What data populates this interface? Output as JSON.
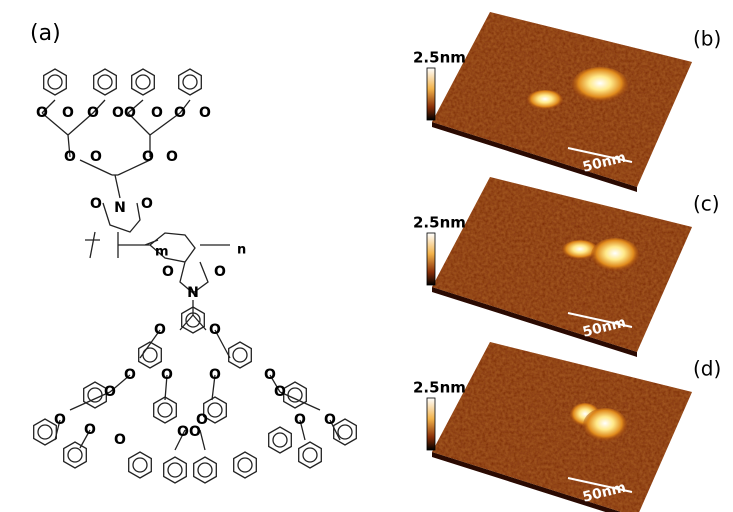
{
  "structure": {
    "label": "(a)",
    "repeat_labels": [
      "m",
      "n"
    ],
    "atoms": [
      "O",
      "O",
      "O",
      "O",
      "O",
      "O",
      "O",
      "O",
      "O",
      "O",
      "O",
      "O",
      "O",
      "N",
      "O",
      "O",
      "N",
      "O",
      "O",
      "O",
      "O",
      "O",
      "O",
      "O",
      "O",
      "O",
      "O",
      "O",
      "O",
      "O",
      "O",
      "O",
      "O",
      "O"
    ]
  },
  "afm": [
    {
      "label": "(b)",
      "height_scale": "2.5nm",
      "scale_bar": "50nm"
    },
    {
      "label": "(c)",
      "height_scale": "2.5nm",
      "scale_bar": "50nm"
    },
    {
      "label": "(d)",
      "height_scale": "2.5nm",
      "scale_bar": "50nm"
    }
  ]
}
